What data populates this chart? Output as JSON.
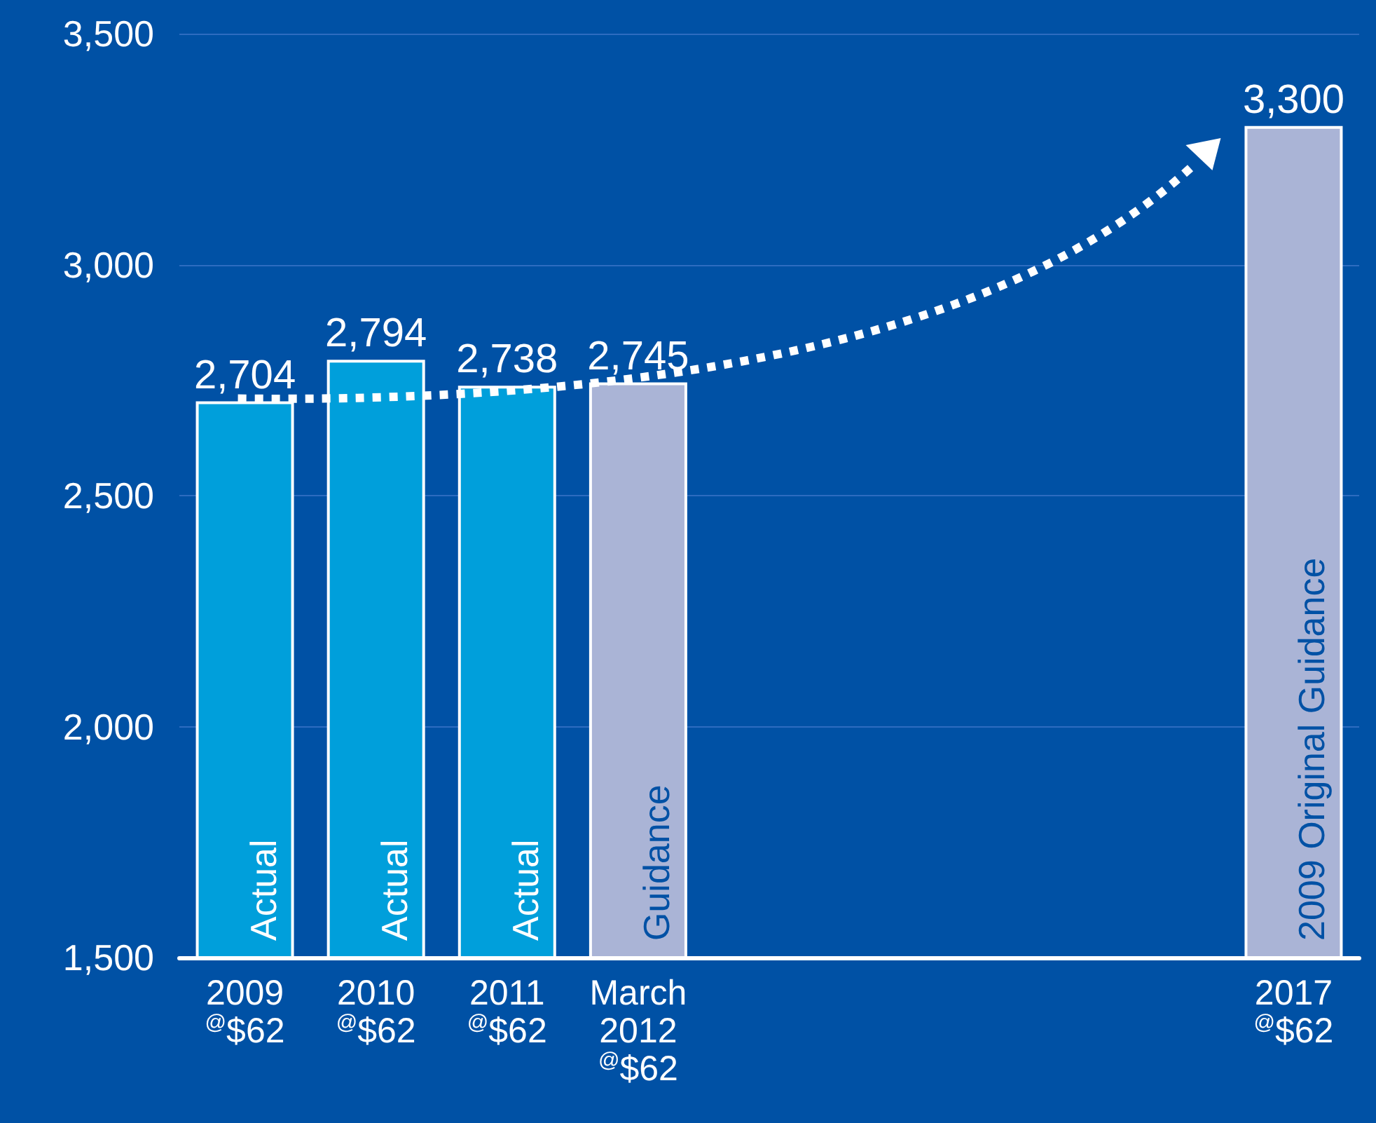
{
  "chart_data": {
    "type": "bar",
    "categories": [
      "2009\n$^{@}$$62",
      "2010\n$^{@}$$62",
      "2011\n$^{@}$$62",
      "March\n2012\n$^{@}$$62",
      null,
      null,
      null,
      null,
      "2017\n$^{@}$$62"
    ],
    "values": [
      2704,
      2794,
      2738,
      2745,
      null,
      null,
      null,
      null,
      3300
    ],
    "colors": [
      "#009fdb",
      "#009fdb",
      "#009fdb",
      "#aab4d6",
      null,
      null,
      null,
      null,
      "#aab4d6"
    ],
    "ylim": [
      1500,
      3500
    ],
    "yticks": [
      {
        "value": 1500,
        "label": "1,500"
      },
      {
        "value": 2000,
        "label": "2,000"
      },
      {
        "value": 2500,
        "label": "2,500"
      },
      {
        "value": 3000,
        "label": "3,000"
      },
      {
        "value": 3500,
        "label": "3,500"
      }
    ],
    "value_labels": [
      "2,704",
      "2,794",
      "2,738",
      "2,745",
      null,
      null,
      null,
      null,
      "3,300"
    ],
    "annotations": [
      "Actual",
      "Actual",
      "Actual",
      "Guidance",
      "2009 Original Guidance"
    ],
    "grid": "y"
  }
}
